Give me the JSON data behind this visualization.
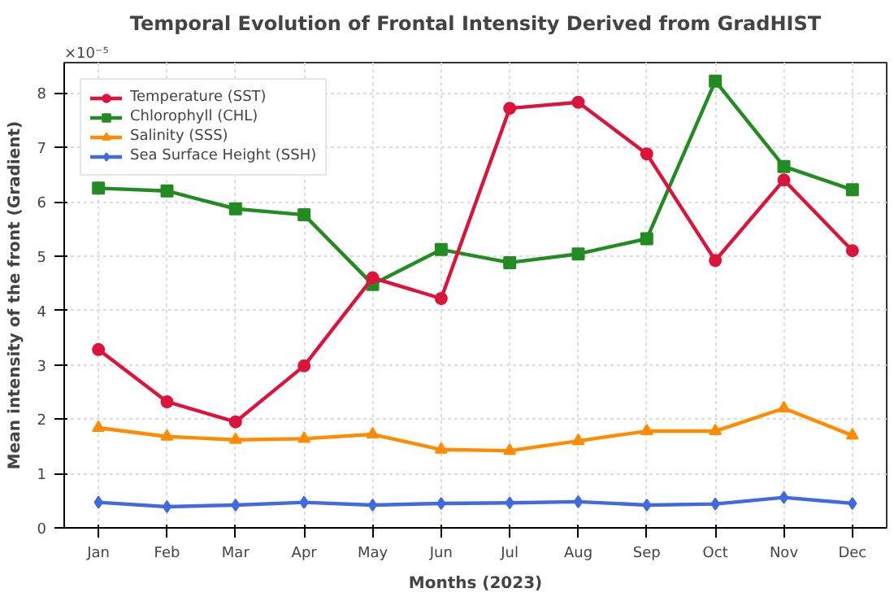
{
  "chart_data": {
    "type": "line",
    "title": "Temporal Evolution of Frontal Intensity Derived from GradHIST",
    "xlabel": "Months (2023)",
    "ylabel": "Mean intensity of the front (Gradient)",
    "categories": [
      "Jan",
      "Feb",
      "Mar",
      "Apr",
      "May",
      "Jun",
      "Jul",
      "Aug",
      "Sep",
      "Oct",
      "Nov",
      "Dec"
    ],
    "series": [
      {
        "name": "Temperature (SST)",
        "color": "#dc143c",
        "marker": "circle",
        "values": [
          3.28,
          2.32,
          1.95,
          2.98,
          4.6,
          4.22,
          7.72,
          7.83,
          6.88,
          4.92,
          6.4,
          5.1
        ]
      },
      {
        "name": "Chlorophyll (CHL)",
        "color": "#228b22",
        "marker": "square",
        "values": [
          6.25,
          6.2,
          5.87,
          5.76,
          4.48,
          5.12,
          4.88,
          5.04,
          5.32,
          8.22,
          6.65,
          6.22
        ]
      },
      {
        "name": "Salinity (SSS)",
        "color": "#ff8c00",
        "marker": "triangle",
        "values": [
          1.84,
          1.68,
          1.62,
          1.64,
          1.72,
          1.44,
          1.42,
          1.6,
          1.78,
          1.78,
          2.2,
          1.7
        ]
      },
      {
        "name": "Sea Surface Height (SSH)",
        "color": "#4169e1",
        "marker": "diamond",
        "values": [
          0.47,
          0.39,
          0.42,
          0.47,
          0.42,
          0.45,
          0.46,
          0.48,
          0.42,
          0.44,
          0.56,
          0.45
        ]
      }
    ],
    "ylim": [
      0,
      8.56
    ],
    "yticks": [
      0,
      1,
      2,
      3,
      4,
      5,
      6,
      7,
      8
    ],
    "annotations": [
      "×10⁻⁵"
    ],
    "grid": true,
    "legend": "top left",
    "line_style": "solid"
  }
}
